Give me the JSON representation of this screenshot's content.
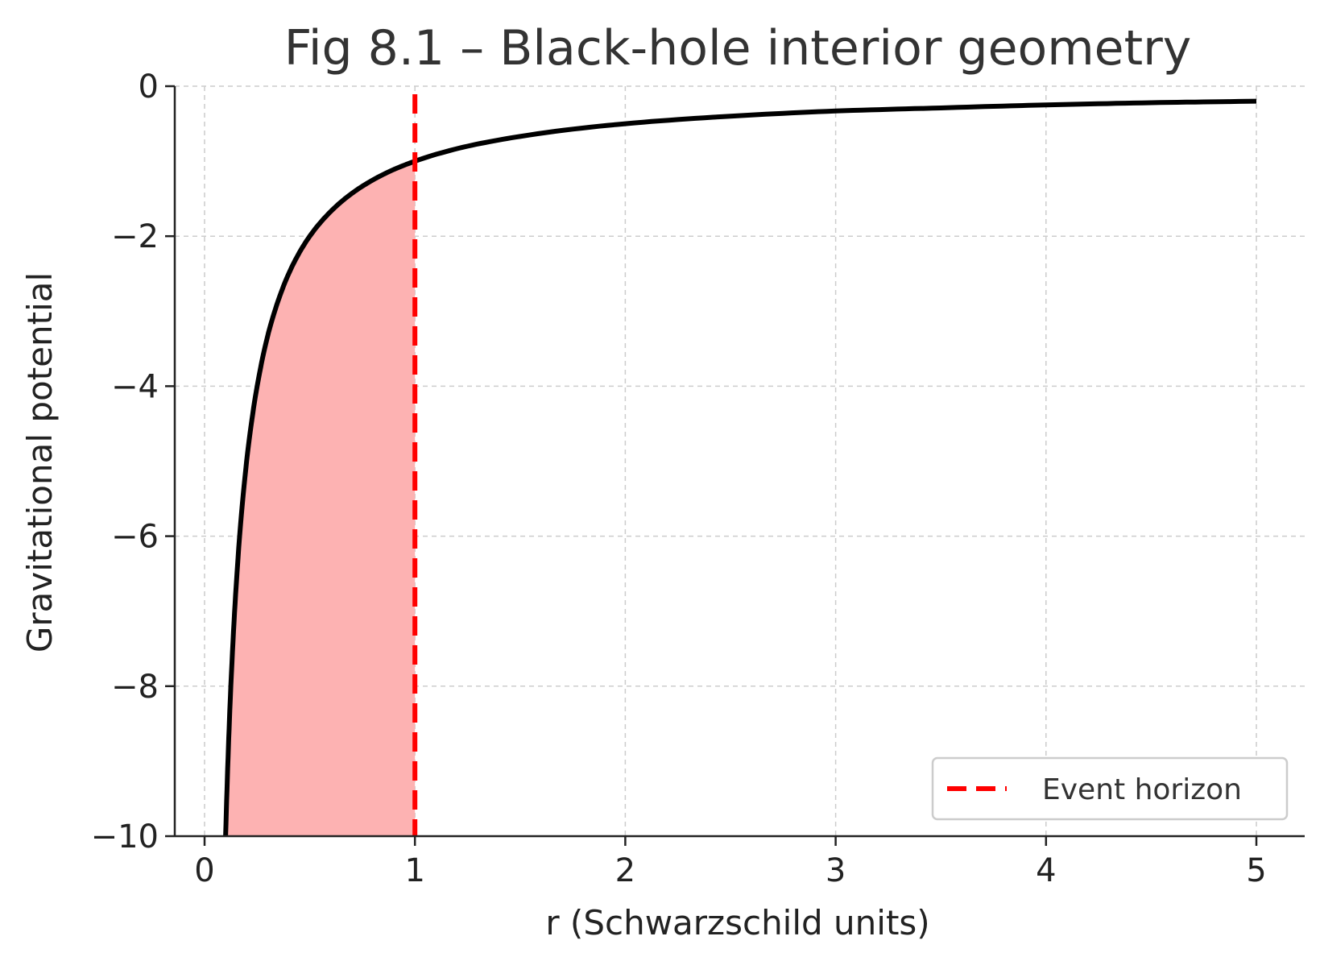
{
  "chart_data": {
    "type": "line",
    "title": "Fig 8.1 – Black-hole interior geometry",
    "xlabel": "r (Schwarzschild units)",
    "ylabel": "Gravitational potential",
    "xlim": [
      -0.15,
      5.25
    ],
    "ylim": [
      -10,
      0
    ],
    "xticks": [
      0,
      1,
      2,
      3,
      4,
      5
    ],
    "xtick_labels": [
      "0",
      "1",
      "2",
      "3",
      "4",
      "5"
    ],
    "yticks": [
      0,
      -2,
      -4,
      -6,
      -8,
      -10
    ],
    "ytick_labels": [
      "0",
      "−2",
      "−4",
      "−6",
      "−8",
      "−10"
    ],
    "grid": true,
    "legend_position": "bottom-right",
    "series": [
      {
        "kind": "curve",
        "color": "#000000",
        "x": [
          0.1,
          0.12,
          0.15,
          0.2,
          0.25,
          0.3,
          0.35,
          0.4,
          0.5,
          0.6,
          0.7,
          0.8,
          0.9,
          1.0,
          1.25,
          1.5,
          2.0,
          2.5,
          3.0,
          3.5,
          4.0,
          4.5,
          5.0
        ],
        "y": [
          -10,
          -8.33,
          -6.67,
          -5,
          -4,
          -3.33,
          -2.86,
          -2.5,
          -2,
          -1.67,
          -1.43,
          -1.25,
          -1.11,
          -1,
          -0.8,
          -0.67,
          -0.5,
          -0.4,
          -0.33,
          -0.29,
          -0.25,
          -0.22,
          -0.2
        ]
      },
      {
        "name": "Event horizon",
        "kind": "vline",
        "x": 1,
        "color": "#ff0000",
        "linestyle": "dashed"
      }
    ],
    "shaded_region": {
      "x_range": [
        0.1,
        1
      ],
      "between": "curve and y = -10",
      "color": "#fdb2b2"
    }
  }
}
